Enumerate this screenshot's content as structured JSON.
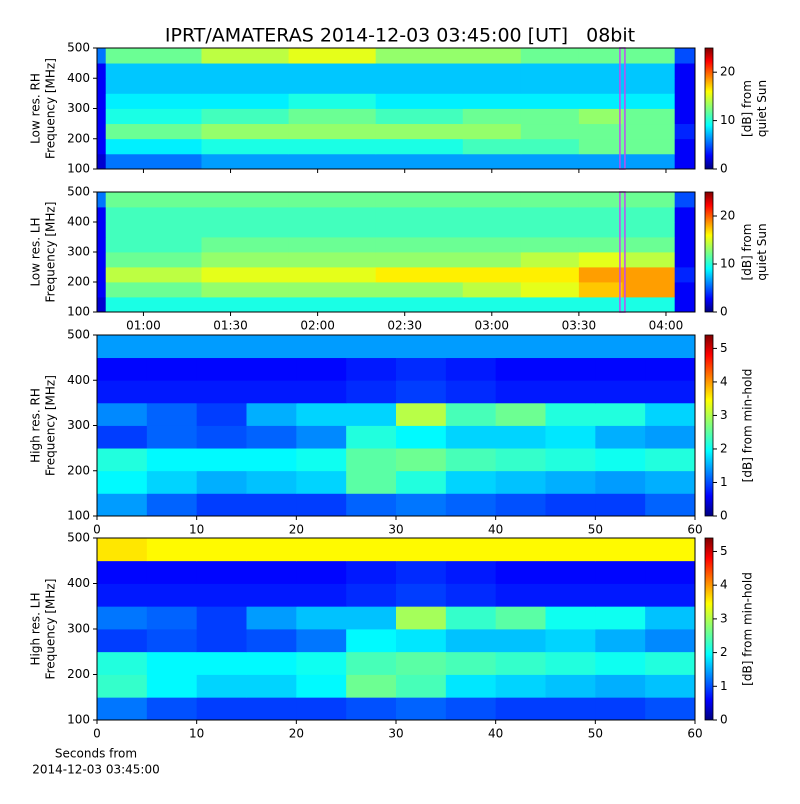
{
  "title": "IPRT/AMATERAS 2014-12-03 03:45:00 [UT]   08bit",
  "chart_data": [
    {
      "type": "heatmap",
      "ylabel": [
        "Low res. RH",
        "Frequency [MHz]"
      ],
      "colorbar_label": [
        "[dB] from",
        "quiet Sun"
      ],
      "xlim": [
        44,
        250
      ],
      "xticks": [
        60,
        90,
        120,
        150,
        180,
        210,
        240
      ],
      "ylim": [
        100,
        500
      ],
      "yticks": [
        100,
        200,
        300,
        400,
        500
      ],
      "clim": [
        0,
        25
      ],
      "cticks": [
        0,
        10,
        20
      ],
      "marker_x": 225,
      "marker_color": "#c04cf0",
      "xbins": [
        44,
        47,
        80,
        110,
        140,
        170,
        190,
        210,
        225,
        243,
        250
      ],
      "ybins": [
        100,
        150,
        200,
        250,
        300,
        350,
        400,
        450,
        500
      ],
      "z": [
        [
          2,
          6,
          7,
          7,
          7,
          7,
          7,
          7,
          7,
          3
        ],
        [
          3,
          9,
          10,
          10,
          10,
          11,
          11,
          12,
          12,
          3
        ],
        [
          3,
          12,
          13,
          13,
          13,
          13,
          12,
          12,
          12,
          4
        ],
        [
          3,
          10,
          11,
          12,
          11,
          12,
          12,
          13,
          12,
          3
        ],
        [
          3,
          9,
          9,
          10,
          9,
          9,
          9,
          9,
          9,
          3
        ],
        [
          3,
          8,
          8,
          8,
          8,
          8,
          8,
          8,
          8,
          3
        ],
        [
          3,
          8,
          8,
          8,
          8,
          8,
          8,
          8,
          8,
          3
        ],
        [
          6,
          12,
          14,
          15,
          13,
          13,
          12,
          12,
          12,
          5
        ]
      ]
    },
    {
      "type": "heatmap",
      "ylabel": [
        "Low res. LH",
        "Frequency [MHz]"
      ],
      "colorbar_label": [
        "[dB] from",
        "quiet Sun"
      ],
      "xlim": [
        44,
        250
      ],
      "xticks": [
        {
          "value": 60,
          "label": "01:00"
        },
        {
          "value": 90,
          "label": "01:30"
        },
        {
          "value": 120,
          "label": "02:00"
        },
        {
          "value": 150,
          "label": "02:30"
        },
        {
          "value": 180,
          "label": "03:00"
        },
        {
          "value": 210,
          "label": "03:30"
        },
        {
          "value": 240,
          "label": "04:00"
        }
      ],
      "ylim": [
        100,
        500
      ],
      "yticks": [
        100,
        200,
        300,
        400,
        500
      ],
      "clim": [
        0,
        25
      ],
      "cticks": [
        0,
        10,
        20
      ],
      "marker_x": 225,
      "marker_color": "#c04cf0",
      "xbins": [
        44,
        47,
        80,
        110,
        140,
        170,
        190,
        210,
        225,
        243,
        250
      ],
      "ybins": [
        100,
        150,
        200,
        250,
        300,
        350,
        400,
        450,
        500
      ],
      "z": [
        [
          2,
          10,
          10,
          10,
          10,
          10,
          10,
          10,
          10,
          3
        ],
        [
          3,
          12,
          13,
          13,
          13,
          14,
          15,
          17,
          18,
          3
        ],
        [
          3,
          14,
          15,
          15,
          16,
          16,
          16,
          18,
          18,
          4
        ],
        [
          3,
          12,
          13,
          13,
          13,
          13,
          14,
          15,
          14,
          3
        ],
        [
          3,
          11,
          12,
          12,
          12,
          12,
          12,
          12,
          12,
          3
        ],
        [
          3,
          11,
          11,
          11,
          11,
          11,
          11,
          11,
          11,
          3
        ],
        [
          3,
          11,
          11,
          11,
          11,
          11,
          11,
          11,
          11,
          3
        ],
        [
          6,
          12,
          12,
          12,
          12,
          12,
          12,
          12,
          12,
          5
        ]
      ]
    },
    {
      "type": "heatmap",
      "ylabel": [
        "High res. RH",
        "Frequency [MHz]"
      ],
      "colorbar_label": [
        "[dB] from min-hold"
      ],
      "xlim": [
        0,
        60
      ],
      "xticks": [
        0,
        10,
        20,
        30,
        40,
        50,
        60
      ],
      "ylim": [
        100,
        500
      ],
      "yticks": [
        100,
        200,
        300,
        400,
        500
      ],
      "clim": [
        0,
        5.4
      ],
      "cticks": [
        0,
        1,
        2,
        3,
        4,
        5
      ],
      "xbins": [
        0,
        5,
        10,
        15,
        20,
        25,
        30,
        35,
        40,
        45,
        50,
        55,
        60
      ],
      "ybins": [
        100,
        150,
        200,
        250,
        300,
        350,
        400,
        450,
        500
      ],
      "z": [
        [
          1.5,
          1.2,
          1.0,
          1.0,
          1.0,
          1.2,
          1.3,
          1.2,
          1.1,
          1.0,
          1.0,
          1.2
        ],
        [
          2.0,
          1.8,
          1.6,
          1.7,
          1.8,
          2.5,
          2.2,
          1.8,
          1.7,
          1.6,
          1.5,
          1.6
        ],
        [
          2.2,
          2.0,
          2.0,
          2.0,
          2.1,
          2.5,
          2.6,
          2.4,
          2.3,
          2.2,
          2.1,
          2.2
        ],
        [
          1.0,
          1.2,
          1.1,
          1.2,
          1.4,
          2.2,
          2.0,
          1.8,
          1.8,
          1.9,
          1.6,
          1.5
        ],
        [
          1.4,
          1.2,
          1.0,
          1.6,
          1.8,
          1.8,
          3.0,
          2.4,
          2.6,
          2.2,
          2.2,
          1.8
        ],
        [
          0.8,
          0.8,
          0.8,
          0.8,
          0.8,
          0.9,
          1.0,
          0.9,
          0.8,
          0.8,
          0.8,
          0.8
        ],
        [
          0.7,
          0.7,
          0.7,
          0.7,
          0.7,
          0.8,
          0.9,
          0.8,
          0.7,
          0.7,
          0.7,
          0.7
        ],
        [
          1.5,
          1.5,
          1.5,
          1.5,
          1.5,
          1.5,
          1.5,
          1.5,
          1.5,
          1.5,
          1.5,
          1.5
        ]
      ]
    },
    {
      "type": "heatmap",
      "ylabel": [
        "High res. LH",
        "Frequency [MHz]"
      ],
      "colorbar_label": [
        "[dB] from min-hold"
      ],
      "xlim": [
        0,
        60
      ],
      "xticks": [
        0,
        10,
        20,
        30,
        40,
        50,
        60
      ],
      "xlabel": [
        "Seconds from",
        "2014-12-03 03:45:00"
      ],
      "ylim": [
        100,
        500
      ],
      "yticks": [
        100,
        200,
        300,
        400,
        500
      ],
      "clim": [
        0,
        5.4
      ],
      "cticks": [
        0,
        1,
        2,
        3,
        4,
        5
      ],
      "xbins": [
        0,
        5,
        10,
        15,
        20,
        25,
        30,
        35,
        40,
        45,
        50,
        55,
        60
      ],
      "ybins": [
        100,
        150,
        200,
        250,
        300,
        350,
        400,
        450,
        500
      ],
      "z": [
        [
          1.3,
          1.1,
          1.0,
          1.0,
          1.0,
          1.1,
          1.2,
          1.1,
          1.0,
          1.0,
          1.0,
          1.1
        ],
        [
          2.3,
          2.0,
          1.8,
          1.8,
          2.0,
          2.6,
          2.4,
          1.9,
          1.8,
          1.7,
          1.6,
          1.7
        ],
        [
          2.2,
          2.0,
          2.0,
          2.0,
          2.1,
          2.4,
          2.5,
          2.4,
          2.3,
          2.2,
          2.1,
          2.2
        ],
        [
          1.0,
          1.1,
          1.0,
          1.1,
          1.3,
          2.0,
          1.9,
          1.7,
          1.7,
          1.8,
          1.6,
          1.4
        ],
        [
          1.3,
          1.2,
          1.0,
          1.5,
          1.7,
          1.7,
          2.9,
          2.3,
          2.5,
          2.1,
          2.1,
          1.7
        ],
        [
          0.8,
          0.8,
          0.8,
          0.8,
          0.8,
          0.9,
          1.0,
          0.9,
          0.8,
          0.8,
          0.8,
          0.8
        ],
        [
          0.7,
          0.7,
          0.7,
          0.7,
          0.7,
          0.8,
          0.9,
          0.8,
          0.7,
          0.7,
          0.7,
          0.7
        ],
        [
          3.5,
          3.4,
          3.4,
          3.4,
          3.4,
          3.4,
          3.4,
          3.4,
          3.4,
          3.4,
          3.4,
          3.4
        ]
      ]
    }
  ]
}
